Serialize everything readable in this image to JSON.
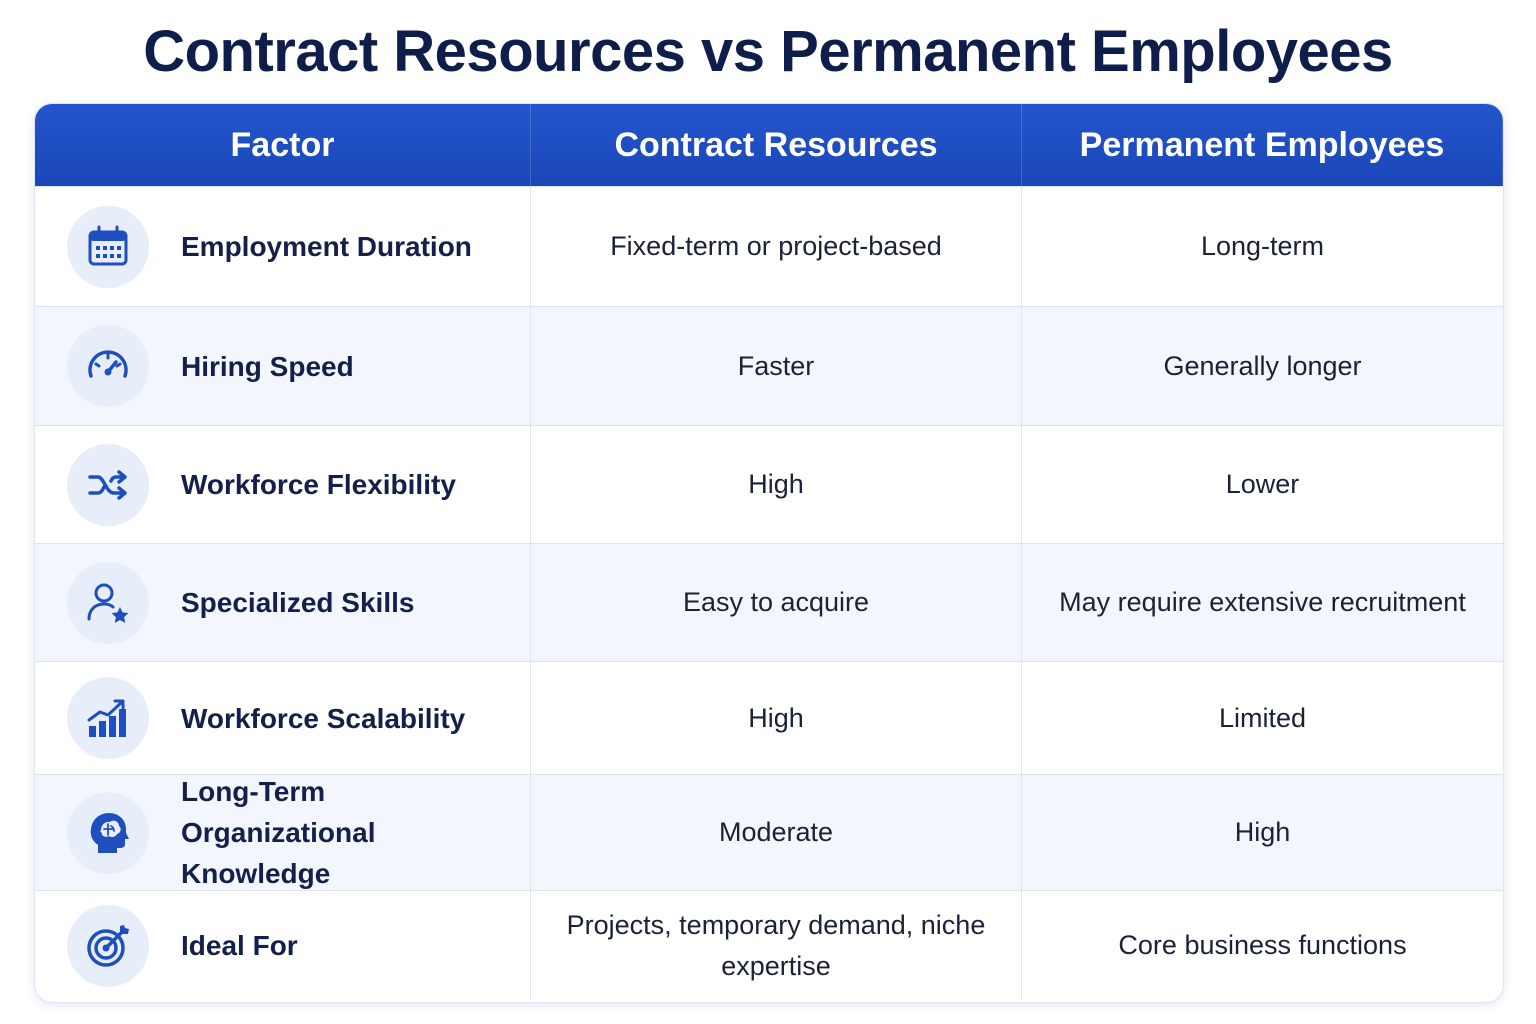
{
  "title": "Contract Resources vs Permanent Employees",
  "header": {
    "factor": "Factor",
    "contract": "Contract Resources",
    "permanent": "Permanent Employees"
  },
  "rows": [
    {
      "icon": "calendar-icon",
      "factor": "Employment Duration",
      "contract": "Fixed-term or project-based",
      "permanent": "Long-term"
    },
    {
      "icon": "speedometer-icon",
      "factor": "Hiring Speed",
      "contract": "Faster",
      "permanent": "Generally longer"
    },
    {
      "icon": "shuffle-arrows-icon",
      "factor": "Workforce Flexibility",
      "contract": "High",
      "permanent": "Lower"
    },
    {
      "icon": "user-star-icon",
      "factor": "Specialized Skills",
      "contract": "Easy to acquire",
      "permanent": "May require extensive recruitment"
    },
    {
      "icon": "growth-chart-icon",
      "factor": "Workforce Scalability",
      "contract": "High",
      "permanent": "Limited"
    },
    {
      "icon": "head-brain-icon",
      "factor": "Long-Term Organizational Knowledge",
      "contract": "Moderate",
      "permanent": "High"
    },
    {
      "icon": "target-icon",
      "factor": "Ideal For",
      "contract": "Projects, temporary demand, niche expertise",
      "permanent": "Core business functions"
    }
  ],
  "colors": {
    "header_bg": "#1d4fc4",
    "title_text": "#0f1d4a",
    "icon_blue": "#1f4fbf",
    "icon_circle_bg": "#e7eef9",
    "alt_row_bg": "#f3f7fd"
  }
}
